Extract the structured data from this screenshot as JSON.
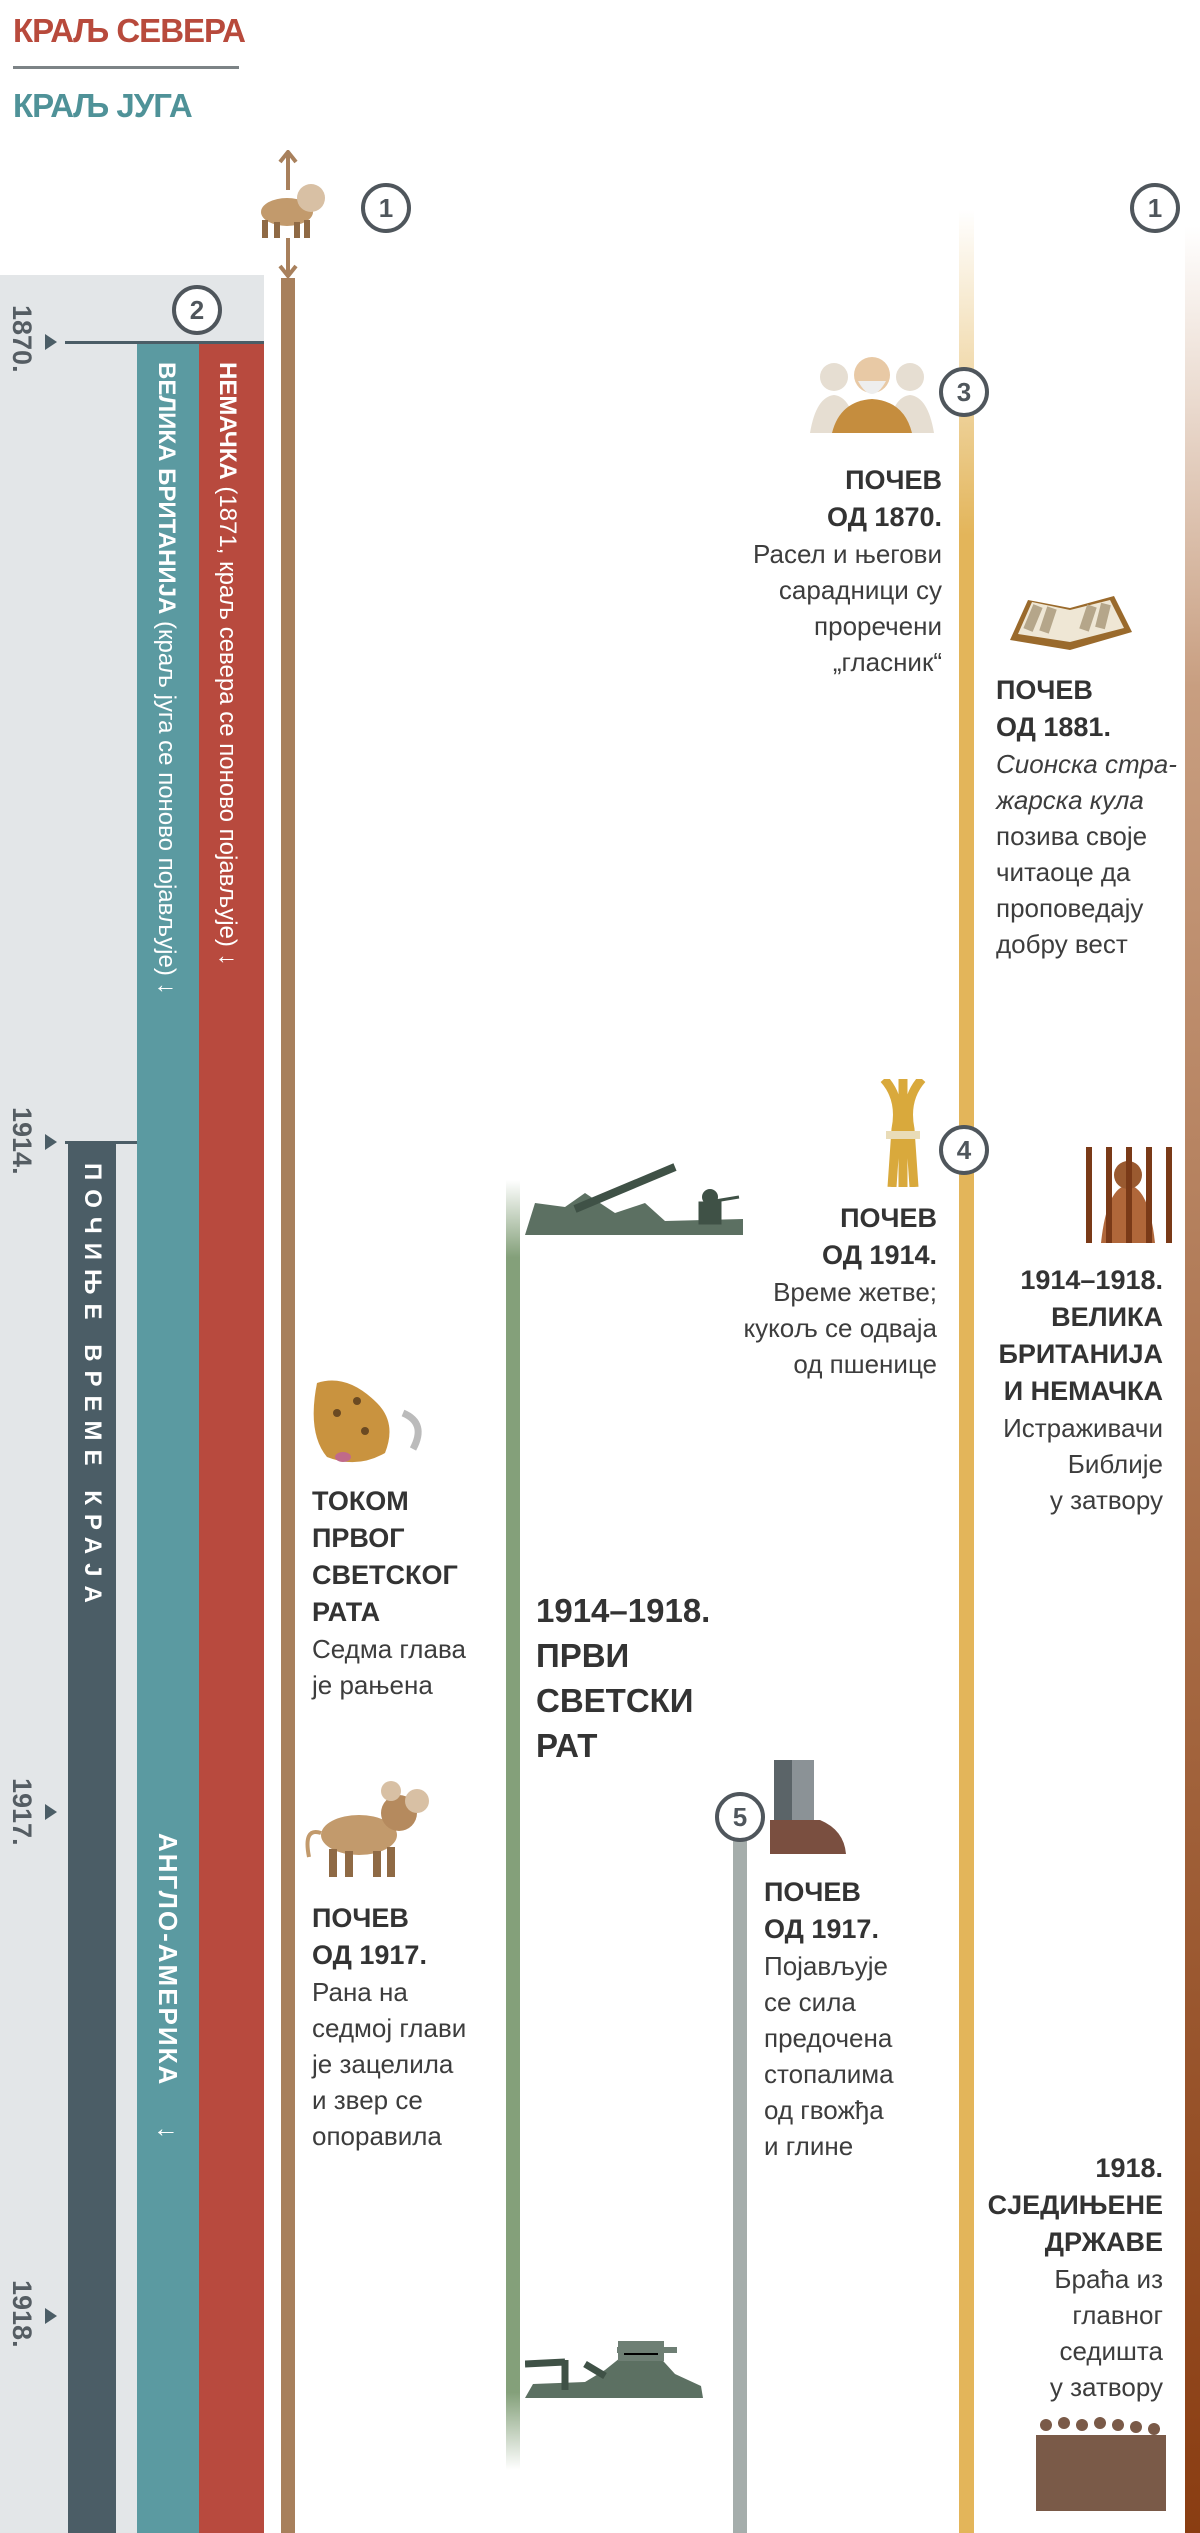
{
  "legend": {
    "north": {
      "label": "КРАЉ СЕВЕРА",
      "color": "#b84a3c"
    },
    "south": {
      "label": "КРАЉ ЈУГА",
      "color": "#4f9298"
    }
  },
  "markers": [
    "1",
    "1",
    "2",
    "3",
    "4",
    "5"
  ],
  "years": [
    "1870.",
    "1914.",
    "1917.",
    "1918."
  ],
  "columns": {
    "germany": {
      "bold": "НЕМАЧКА",
      "text": " (1871, краљ севера се поново појављује) ",
      "arrow": "↓",
      "color": "#b84a3e"
    },
    "britain": {
      "bold": "ВЕЛИКА БРИТАНИЈА",
      "text": " (краљ југа се поново појављује) ",
      "arrow": "↓",
      "color": "#5b9aa1"
    },
    "anglo_america": {
      "label": "АНГЛО-АМЕРИКА",
      "arrow": "↓"
    },
    "time_of_end": {
      "label": "ПОЧИЊЕ ВРЕМЕ КРАЈА",
      "color": "#4b5d66"
    }
  },
  "events": {
    "e1870": {
      "h1": "ПОЧЕВ",
      "h2": "ОД 1870.",
      "lines": [
        "Расел и његови",
        "сарадници су",
        "проречени",
        "„гласник“"
      ]
    },
    "e1881": {
      "h1": "ПОЧЕВ",
      "h2": "ОД 1881.",
      "italic": [
        "Сионска стра-",
        "жарска кула"
      ],
      "lines": [
        "позива своје",
        "читаоце да",
        "проповедају",
        "добру вест"
      ]
    },
    "e1914": {
      "h1": "ПОЧЕВ",
      "h2": "ОД 1914.",
      "lines": [
        "Време жетве;",
        "кукољ се одваја",
        "од пшенице"
      ]
    },
    "e1914_18_prison": {
      "h": [
        "1914–1918.",
        "ВЕЛИКА",
        "БРИТАНИЈА",
        "И НЕМАЧКА"
      ],
      "lines": [
        "Истраживачи",
        "Библије",
        "у затвору"
      ]
    },
    "ww1_wound": {
      "h": [
        "ТОКОМ",
        "ПРВОГ",
        "СВЕТСКОГ",
        "РАТА"
      ],
      "lines": [
        "Седма глава",
        "је рањена"
      ]
    },
    "ww1": {
      "h": [
        "1914–1918.",
        "ПРВИ",
        "СВЕТСКИ",
        "РАТ"
      ]
    },
    "e1917_beast": {
      "h1": "ПОЧЕВ",
      "h2": "ОД 1917.",
      "lines": [
        "Рана на",
        "седмој глави",
        "је зацелила",
        "и звер се",
        "опоравила"
      ]
    },
    "e1917_feet": {
      "h1": "ПОЧЕВ",
      "h2": "ОД 1917.",
      "lines": [
        "Појављује",
        "се сила",
        "предочена",
        "стопалима",
        "од гвожђа",
        "и глине"
      ]
    },
    "e1918_us": {
      "h": [
        "1918.",
        "СЈЕДИЊЕНЕ",
        "ДРЖАВЕ"
      ],
      "lines": [
        "Браћа из",
        "главног",
        "седишта",
        "у затвору"
      ]
    }
  }
}
